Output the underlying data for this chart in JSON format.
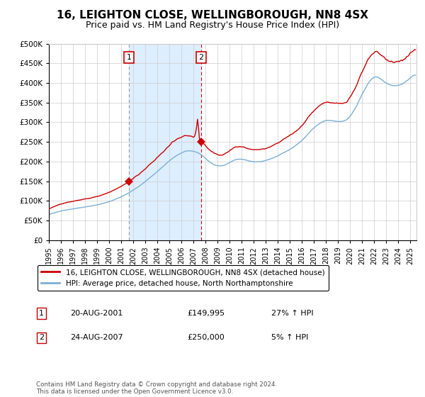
{
  "title": "16, LEIGHTON CLOSE, WELLINGBOROUGH, NN8 4SX",
  "subtitle": "Price paid vs. HM Land Registry's House Price Index (HPI)",
  "legend_line1": "16, LEIGHTON CLOSE, WELLINGBOROUGH, NN8 4SX (detached house)",
  "legend_line2": "HPI: Average price, detached house, North Northamptonshire",
  "sale1_label": "1",
  "sale1_date": "20-AUG-2001",
  "sale1_price": "£149,995",
  "sale1_hpi": "27% ↑ HPI",
  "sale1_year": 2001.64,
  "sale1_value": 149995,
  "sale2_label": "2",
  "sale2_date": "24-AUG-2007",
  "sale2_price": "£250,000",
  "sale2_hpi": "5% ↑ HPI",
  "sale2_year": 2007.64,
  "sale2_value": 250000,
  "footer": "Contains HM Land Registry data © Crown copyright and database right 2024.\nThis data is licensed under the Open Government Licence v3.0.",
  "ylim": [
    0,
    500000
  ],
  "yticks": [
    0,
    50000,
    100000,
    150000,
    200000,
    250000,
    300000,
    350000,
    400000,
    450000,
    500000
  ],
  "xmin": 1995.0,
  "xmax": 2025.5,
  "line_color_red": "#cc0000",
  "line_color_blue": "#7ab0d4",
  "shade_color": "#ddeeff",
  "grid_color": "#cccccc",
  "bg_color": "#ffffff",
  "title_fontsize": 11,
  "subtitle_fontsize": 9
}
